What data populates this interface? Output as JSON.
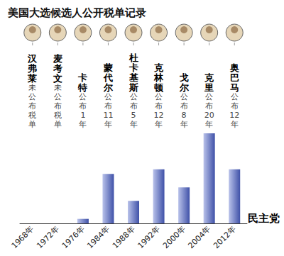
{
  "chart_data": {
    "type": "bar",
    "title": "美国大选候选人公开税单记录",
    "categories": [
      "1968年",
      "1972年",
      "1976年",
      "1984年",
      "1988年",
      "1992年",
      "2000年",
      "2004年",
      "2012年"
    ],
    "values": [
      0,
      0,
      1,
      11,
      5,
      12,
      8,
      20,
      12
    ],
    "value_labels": [
      "未公布税单",
      "未公布税单",
      "公布1年",
      "公布11年",
      "公布5年",
      "公布12年",
      "公布8年",
      "公布20年",
      "公布12年"
    ],
    "annotations": {
      "candidates": [
        "汉弗莱",
        "麦考文",
        "卡特",
        "蒙代尔",
        "杜卡基斯",
        "克林顿",
        "戈尔",
        "克里",
        "奥巴马"
      ],
      "party": "民主党"
    },
    "color": "#3f51a8",
    "ylim": [
      0,
      20
    ],
    "grid": false,
    "tick_labels": "x"
  }
}
